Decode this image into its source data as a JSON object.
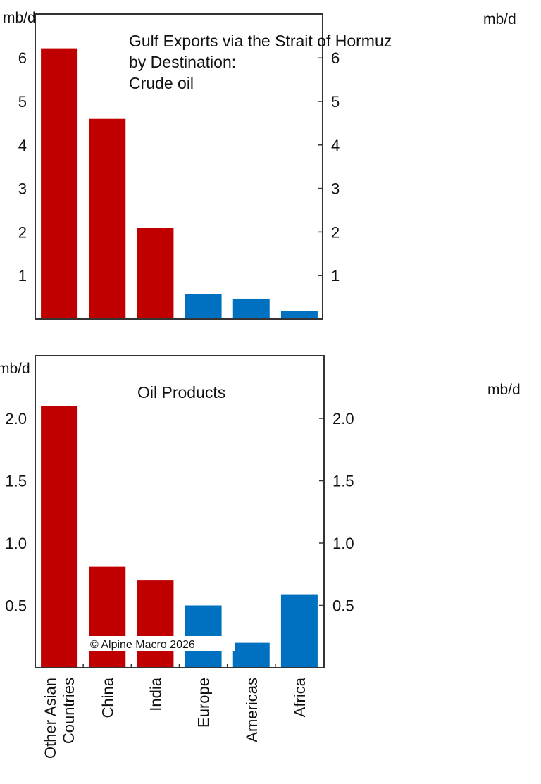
{
  "chart_data": [
    {
      "type": "bar",
      "title": "Gulf Exports via the Strait of Hormuz\nby Destination:\nCrude oil",
      "title_lines": [
        "Gulf Exports via the Strait of Hormuz",
        "by Destination:",
        "Crude oil"
      ],
      "ylabel_left": "mb/d",
      "ylabel_right": "mb/d",
      "categories": [
        "Other Asian Countries",
        "China",
        "India",
        "Europe",
        "Americas",
        "Africa"
      ],
      "values": [
        6.22,
        4.6,
        2.09,
        0.57,
        0.47,
        0.19
      ],
      "colors": [
        "#C00000",
        "#C00000",
        "#C00000",
        "#0070C0",
        "#0070C0",
        "#0070C0"
      ],
      "ylim": [
        0,
        6.9
      ],
      "yticks": [
        1,
        2,
        3,
        4,
        5,
        6
      ],
      "ytick_labels": [
        "1",
        "2",
        "3",
        "4",
        "5",
        "6"
      ]
    },
    {
      "type": "bar",
      "title": "Oil Products",
      "title_lines": [
        "Oil Products"
      ],
      "ylabel_left": "mb/d",
      "ylabel_right": "mb/d",
      "categories": [
        "Other Asian Countries",
        "China",
        "India",
        "Europe",
        "Americas",
        "Africa"
      ],
      "category_label_lines": [
        [
          "Other Asian",
          "Countries"
        ],
        [
          "China"
        ],
        [
          "India"
        ],
        [
          "Europe"
        ],
        [
          "Americas"
        ],
        [
          "Africa"
        ]
      ],
      "values": [
        2.1,
        0.81,
        0.7,
        0.5,
        0.2,
        0.59
      ],
      "colors": [
        "#C00000",
        "#C00000",
        "#C00000",
        "#0070C0",
        "#0070C0",
        "#0070C0"
      ],
      "ylim": [
        0,
        2.5
      ],
      "yticks": [
        0.5,
        1.0,
        1.5,
        2.0
      ],
      "ytick_labels": [
        "0.5",
        "1.0",
        "1.5",
        "2.0"
      ],
      "annotation": "© Alpine Macro 2026"
    }
  ]
}
